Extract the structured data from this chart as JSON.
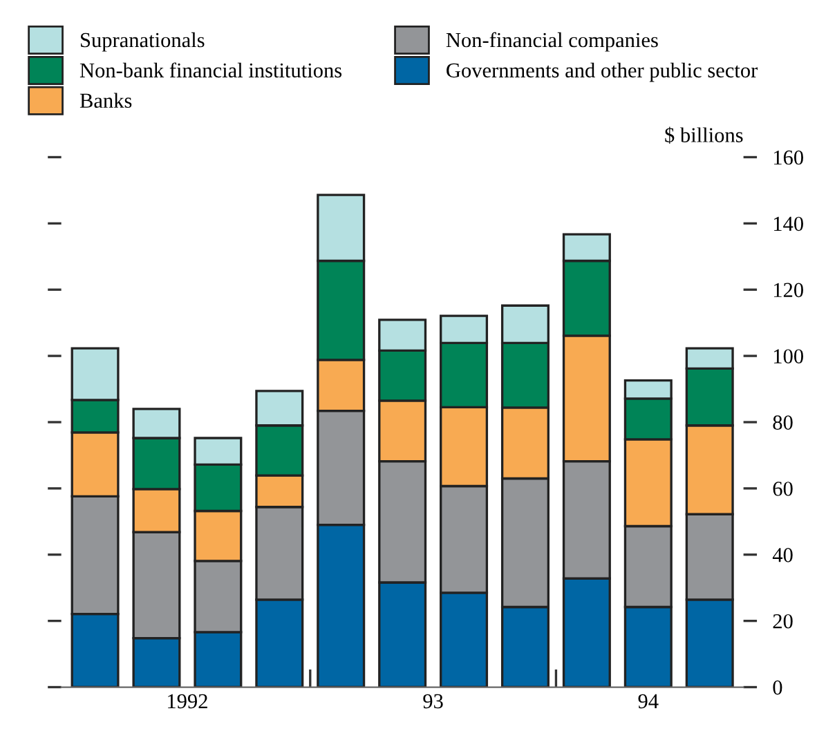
{
  "chart_data": {
    "type": "bar",
    "stacked": true,
    "categories": [
      null,
      null,
      null,
      null,
      null,
      null,
      null,
      null,
      null,
      null,
      null
    ],
    "series": [
      {
        "name": "Governments and other public sector",
        "color": "#0066a4",
        "values": [
          22.1,
          14.8,
          16.6,
          26.4,
          49,
          31.6,
          28.5,
          24.2,
          32.8,
          24.2,
          26.4
        ]
      },
      {
        "name": "Non-financial companies",
        "color": "#939598",
        "values": [
          35.5,
          32,
          21.5,
          28,
          34.4,
          36.6,
          32.2,
          38.8,
          35.4,
          24.4,
          25.8
        ]
      },
      {
        "name": "Banks",
        "color": "#f8aa52",
        "values": [
          19.3,
          13,
          15.1,
          9.5,
          15.4,
          18.3,
          23.8,
          21.4,
          37.9,
          26.2,
          26.8
        ]
      },
      {
        "name": "Non-bank financial institutions",
        "color": "#008457",
        "values": [
          9.8,
          15.4,
          14,
          15.1,
          29.9,
          15.1,
          19.4,
          19.5,
          22.6,
          12.3,
          17.2
        ]
      },
      {
        "name": "Supranationals",
        "color": "#b5e0e1",
        "values": [
          15.6,
          8.8,
          8,
          10.4,
          19.9,
          9.3,
          8.2,
          11.3,
          8,
          5.5,
          6.1
        ]
      }
    ],
    "ylabel": "$ billions",
    "ylim": [
      0,
      160
    ],
    "yticks": [
      0,
      20,
      40,
      60,
      80,
      100,
      120,
      140,
      160
    ],
    "annotations": [
      "1992",
      "93",
      "94"
    ],
    "grid": false,
    "legend": "top"
  }
}
